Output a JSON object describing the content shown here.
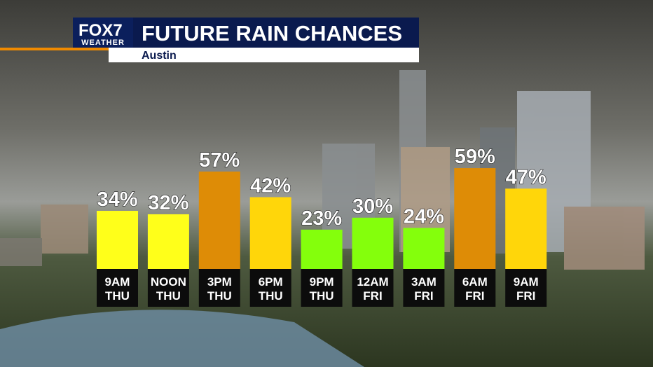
{
  "header": {
    "logo": "FOX",
    "logo_number": "7",
    "logo_sub": "WEATHER",
    "title": "FUTURE RAIN CHANCES",
    "location": "Austin"
  },
  "chart_data": {
    "type": "bar",
    "categories": [
      [
        "9AM",
        "THU"
      ],
      [
        "NOON",
        "THU"
      ],
      [
        "3PM",
        "THU"
      ],
      [
        "6PM",
        "THU"
      ],
      [
        "9PM",
        "THU"
      ],
      [
        "12AM",
        "FRI"
      ],
      [
        "3AM",
        "FRI"
      ],
      [
        "6AM",
        "FRI"
      ],
      [
        "9AM",
        "FRI"
      ]
    ],
    "values": [
      34,
      32,
      57,
      42,
      23,
      30,
      24,
      59,
      47
    ],
    "value_labels": [
      "34%",
      "32%",
      "57%",
      "42%",
      "23%",
      "30%",
      "24%",
      "59%",
      "47%"
    ],
    "colors": [
      "#ffff1a",
      "#ffff1a",
      "#de8c06",
      "#ffd60a",
      "#84ff0c",
      "#84ff0c",
      "#84ff0c",
      "#de8c06",
      "#ffd60a"
    ]
  }
}
